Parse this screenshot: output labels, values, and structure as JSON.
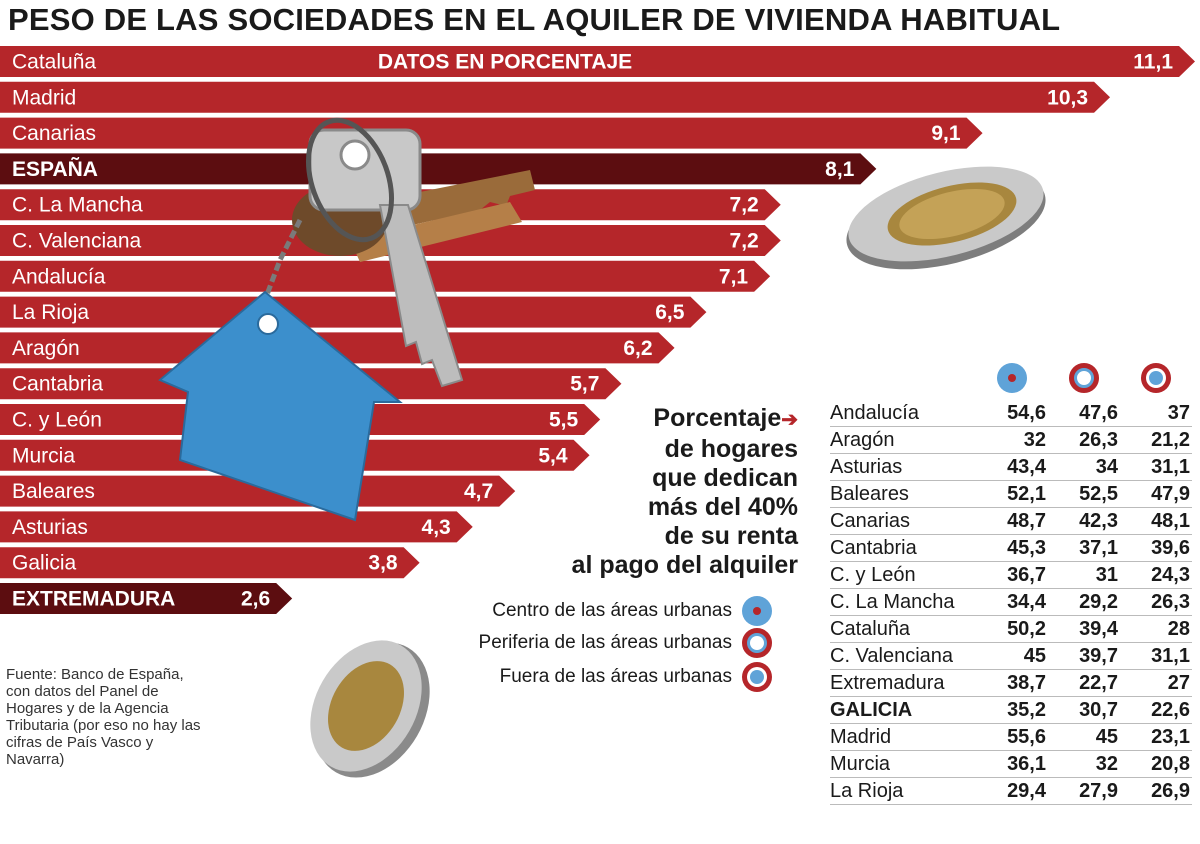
{
  "title": "PESO DE LAS SOCIEDADES EN EL AQUILER DE VIVIENDA HABITUAL",
  "colors": {
    "bar": "#b5262a",
    "bar_highlight": "#5c0d10",
    "text": "#1a1a1a",
    "blue": "#5fa3d8"
  },
  "chart_data": {
    "type": "bar",
    "orientation": "horizontal",
    "subtitle": "DATOS EN PORCENTAJE",
    "categories": [
      "Cataluña",
      "Madrid",
      "Canarias",
      "ESPAÑA",
      "C. La Mancha",
      "C. Valenciana",
      "Andalucía",
      "La Rioja",
      "Aragón",
      "Cantabria",
      "C. y León",
      "Murcia",
      "Baleares",
      "Asturias",
      "Galicia",
      "EXTREMADURA"
    ],
    "values": [
      11.1,
      10.3,
      9.1,
      8.1,
      7.2,
      7.2,
      7.1,
      6.5,
      6.2,
      5.7,
      5.5,
      5.4,
      4.7,
      4.3,
      3.8,
      2.6
    ],
    "value_labels": [
      "11,1",
      "10,3",
      "9,1",
      "8,1",
      "7,2",
      "7,2",
      "7,1",
      "6,5",
      "6,2",
      "5,7",
      "5,5",
      "5,4",
      "4,7",
      "4,3",
      "3,8",
      "2,6"
    ],
    "highlight": [
      "ESPAÑA",
      "EXTREMADURA"
    ],
    "xlim": [
      0,
      11.1
    ]
  },
  "table": {
    "title_lines": [
      "Porcentaje",
      "de hogares",
      "que dedican",
      "más del 40%",
      "de su renta",
      "al pago del alquiler"
    ],
    "columns": [
      "Centro de las áreas urbanas",
      "Periferia de las áreas urbanas",
      "Fuera de las áreas urbanas"
    ],
    "rows": [
      {
        "region": "Andalucía",
        "values": [
          "54,6",
          "47,6",
          "37"
        ]
      },
      {
        "region": "Aragón",
        "values": [
          "32",
          "26,3",
          "21,2"
        ]
      },
      {
        "region": "Asturias",
        "values": [
          "43,4",
          "34",
          "31,1"
        ]
      },
      {
        "region": "Baleares",
        "values": [
          "52,1",
          "52,5",
          "47,9"
        ]
      },
      {
        "region": "Canarias",
        "values": [
          "48,7",
          "42,3",
          "48,1"
        ]
      },
      {
        "region": "Cantabria",
        "values": [
          "45,3",
          "37,1",
          "39,6"
        ]
      },
      {
        "region": "C. y León",
        "values": [
          "36,7",
          "31",
          "24,3"
        ]
      },
      {
        "region": "C. La Mancha",
        "values": [
          "34,4",
          "29,2",
          "26,3"
        ]
      },
      {
        "region": "Cataluña",
        "values": [
          "50,2",
          "39,4",
          "28"
        ]
      },
      {
        "region": "C. Valenciana",
        "values": [
          "45",
          "39,7",
          "31,1"
        ]
      },
      {
        "region": "Extremadura",
        "values": [
          "38,7",
          "22,7",
          "27"
        ]
      },
      {
        "region": "GALICIA",
        "values": [
          "35,2",
          "30,7",
          "22,6"
        ],
        "highlight": true
      },
      {
        "region": "Madrid",
        "values": [
          "55,6",
          "45",
          "23,1"
        ]
      },
      {
        "region": "Murcia",
        "values": [
          "36,1",
          "32",
          "20,8"
        ]
      },
      {
        "region": "La Rioja",
        "values": [
          "29,4",
          "27,9",
          "26,9"
        ]
      }
    ]
  },
  "source": "Fuente: Banco de España, con datos del Panel de Hogares y de la Agencia Tributaria (por eso no hay las cifras de País Vasco y Navarra)"
}
